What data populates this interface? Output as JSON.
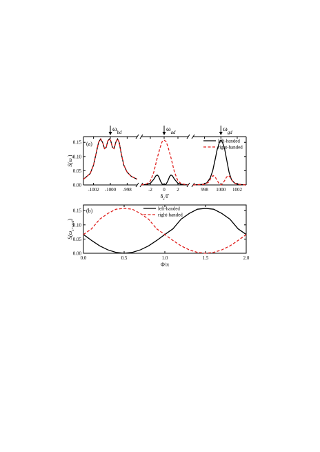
{
  "chart_data": [
    {
      "type": "line",
      "panel_label": "(a)",
      "ylabel": "S(ω_s)",
      "xlabel": "δ_s/Γ",
      "ylim": [
        0,
        0.17
      ],
      "yticks": [
        "0.00",
        "0.05",
        "0.10",
        "0.15"
      ],
      "yticks_values": [
        0,
        0.05,
        0.1,
        0.15
      ],
      "legend_position": "top-right of third segment",
      "segments": [
        {
          "xlim": [
            -1003.2,
            -996.8
          ],
          "ticks": [
            -1002,
            -1000,
            -998
          ],
          "tick_labels": [
            "-1002",
            "-1000",
            "-998"
          ],
          "arrow_label": "ω_bd",
          "arrow_x": -1000,
          "series": [
            {
              "name": "left-handed",
              "color": "#000000",
              "dash": "solid",
              "x": [
                -1003.2,
                -1002.4,
                -1002.0,
                -1001.7,
                -1001.4,
                -1001.15,
                -1000.9,
                -1000.7,
                -1000.5,
                -1000.3,
                -1000.1,
                -999.95,
                -999.75,
                -999.55,
                -999.35,
                -999.15,
                -998.95,
                -998.7,
                -998.4,
                -998.0,
                -997.5,
                -996.8
              ],
              "y": [
                0.02,
                0.04,
                0.07,
                0.11,
                0.15,
                0.162,
                0.148,
                0.128,
                0.132,
                0.155,
                0.162,
                0.155,
                0.132,
                0.128,
                0.15,
                0.162,
                0.15,
                0.11,
                0.07,
                0.045,
                0.03,
                0.02
              ]
            },
            {
              "name": "right-handed",
              "color": "#e0201e",
              "dash": "dashed",
              "x": [
                -1003.2,
                -1002.4,
                -1002.0,
                -1001.7,
                -1001.4,
                -1001.15,
                -1000.9,
                -1000.7,
                -1000.5,
                -1000.3,
                -1000.1,
                -999.95,
                -999.75,
                -999.55,
                -999.35,
                -999.15,
                -998.95,
                -998.7,
                -998.4,
                -998.0,
                -997.5,
                -996.8
              ],
              "y": [
                0.02,
                0.04,
                0.07,
                0.11,
                0.15,
                0.162,
                0.148,
                0.128,
                0.132,
                0.155,
                0.162,
                0.155,
                0.132,
                0.128,
                0.15,
                0.162,
                0.15,
                0.11,
                0.07,
                0.045,
                0.03,
                0.02
              ]
            }
          ]
        },
        {
          "xlim": [
            -3.3,
            3.5
          ],
          "ticks": [
            -2,
            0,
            2
          ],
          "tick_labels": [
            "-2",
            "0",
            "2"
          ],
          "arrow_label": "ω_ad",
          "arrow_x": 0,
          "series": [
            {
              "name": "left-handed",
              "color": "#000000",
              "dash": "solid",
              "x": [
                -3.3,
                -2.5,
                -2.0,
                -1.5,
                -1.2,
                -1.0,
                -0.8,
                -0.5,
                -0.25,
                0,
                0.25,
                0.5,
                0.8,
                1.0,
                1.2,
                1.5,
                2.0,
                2.5,
                3.5
              ],
              "y": [
                0.0,
                0.002,
                0.006,
                0.02,
                0.032,
                0.035,
                0.03,
                0.012,
                0.002,
                0.0,
                0.002,
                0.012,
                0.03,
                0.035,
                0.032,
                0.02,
                0.006,
                0.002,
                0.0
              ]
            },
            {
              "name": "right-handed",
              "color": "#e0201e",
              "dash": "dashed",
              "x": [
                -3.3,
                -2.5,
                -2.0,
                -1.5,
                -1.0,
                -0.6,
                -0.3,
                0,
                0.3,
                0.6,
                1.0,
                1.5,
                2.0,
                2.5,
                3.5
              ],
              "y": [
                0.0,
                0.004,
                0.014,
                0.045,
                0.095,
                0.13,
                0.152,
                0.158,
                0.152,
                0.13,
                0.095,
                0.045,
                0.014,
                0.004,
                0.0
              ]
            }
          ]
        },
        {
          "xlim": [
            996.6,
            1003.1
          ],
          "ticks": [
            998,
            1000,
            1002
          ],
          "tick_labels": [
            "998",
            "1000",
            "1002"
          ],
          "arrow_label": "ω_gd",
          "arrow_x": 1000,
          "series": [
            {
              "name": "left-handed",
              "color": "#000000",
              "dash": "solid",
              "x": [
                996.6,
                997.8,
                998.3,
                998.7,
                999.0,
                999.3,
                999.55,
                999.8,
                1000.0,
                1000.2,
                1000.45,
                1000.7,
                1001.0,
                1001.3,
                1001.7,
                1002.2,
                1003.1
              ],
              "y": [
                0.0,
                0.002,
                0.008,
                0.025,
                0.05,
                0.09,
                0.125,
                0.148,
                0.158,
                0.15,
                0.128,
                0.09,
                0.045,
                0.018,
                0.006,
                0.002,
                0.0
              ]
            },
            {
              "name": "right-handed",
              "color": "#e0201e",
              "dash": "dashed",
              "x": [
                996.6,
                998.0,
                998.5,
                998.8,
                999.05,
                999.3,
                999.55,
                999.8,
                1000.0,
                1000.2,
                1000.45,
                1000.7,
                1000.95,
                1001.2,
                1001.5,
                1002.0,
                1003.1
              ],
              "y": [
                0.0,
                0.002,
                0.01,
                0.025,
                0.033,
                0.028,
                0.015,
                0.004,
                0.0,
                0.004,
                0.015,
                0.028,
                0.033,
                0.025,
                0.01,
                0.002,
                0.0
              ]
            }
          ]
        }
      ],
      "legend": [
        {
          "label": "left-handed",
          "color": "#000000",
          "dash": "solid"
        },
        {
          "label": "right-handed",
          "color": "#e0201e",
          "dash": "dashed"
        }
      ]
    },
    {
      "type": "line",
      "panel_label": "(b)",
      "ylabel": "S(ω_s=ω_ad)",
      "xlabel": "Φ/π",
      "xlim": [
        0,
        2
      ],
      "ylim": [
        0,
        0.17
      ],
      "xticks": [
        0,
        0.5,
        1.0,
        1.5,
        2.0
      ],
      "xtick_labels": [
        "0.0",
        "0.5",
        "1.0",
        "1.5",
        "2.0"
      ],
      "yticks": [
        "0.00",
        "0.05",
        "0.10",
        "0.15"
      ],
      "yticks_values": [
        0,
        0.05,
        0.1,
        0.15
      ],
      "legend_position": "top-center",
      "series": [
        {
          "name": "left-handed",
          "color": "#000000",
          "dash": "solid",
          "x": [
            0,
            0.1,
            0.2,
            0.3,
            0.4,
            0.5,
            0.6,
            0.7,
            0.8,
            0.9,
            1.0,
            1.1,
            1.2,
            1.3,
            1.4,
            1.5,
            1.6,
            1.7,
            1.8,
            1.9,
            2.0
          ],
          "y": [
            0.066,
            0.045,
            0.026,
            0.012,
            0.003,
            0.0,
            0.003,
            0.012,
            0.026,
            0.045,
            0.066,
            0.086,
            0.12,
            0.14,
            0.155,
            0.158,
            0.155,
            0.14,
            0.12,
            0.086,
            0.066
          ]
        },
        {
          "name": "right-handed",
          "color": "#e0201e",
          "dash": "dashed",
          "x": [
            0,
            0.1,
            0.2,
            0.3,
            0.4,
            0.5,
            0.6,
            0.7,
            0.8,
            0.9,
            1.0,
            1.1,
            1.2,
            1.3,
            1.4,
            1.5,
            1.6,
            1.7,
            1.8,
            1.9,
            2.0
          ],
          "y": [
            0.066,
            0.086,
            0.12,
            0.14,
            0.155,
            0.158,
            0.155,
            0.14,
            0.12,
            0.086,
            0.066,
            0.045,
            0.026,
            0.012,
            0.003,
            0.0,
            0.003,
            0.012,
            0.026,
            0.045,
            0.066
          ]
        }
      ],
      "legend": [
        {
          "label": "left-handed",
          "color": "#000000",
          "dash": "solid"
        },
        {
          "label": "right-handed",
          "color": "#e0201e",
          "dash": "dashed"
        }
      ]
    }
  ]
}
